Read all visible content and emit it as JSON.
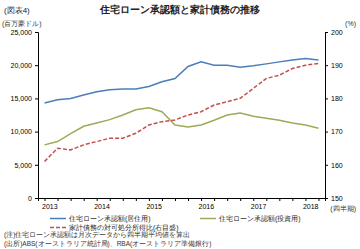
{
  "chart_data": {
    "type": "line",
    "subtitle": "(図表4)",
    "title": "住宅ローン承認額と家計債務の推移",
    "y_label": "(百万豪ドル)",
    "y2_label": "(%)",
    "x_label": "(四半期)",
    "categories": [
      "2013",
      null,
      null,
      null,
      "2014",
      null,
      null,
      null,
      "2015",
      null,
      null,
      null,
      "2016",
      null,
      null,
      null,
      "2017",
      null,
      null,
      null,
      "2018",
      null
    ],
    "series": [
      {
        "name": "住宅ローン承認額(居住用)",
        "color": "#4a7ebb",
        "line_style": "solid",
        "values": [
          14300,
          14800,
          15000,
          15500,
          16000,
          16300,
          16400,
          16400,
          16800,
          17500,
          18000,
          19800,
          20500,
          20000,
          20000,
          19700,
          19900,
          20200,
          20500,
          20800,
          21000,
          20800
        ]
      },
      {
        "name": "住宅ローン承認額(投資用)",
        "color": "#9bab57",
        "line_style": "solid",
        "values": [
          8000,
          8500,
          9700,
          10800,
          11300,
          11800,
          12500,
          13300,
          13600,
          13000,
          11000,
          10700,
          11000,
          11700,
          12500,
          12800,
          12300,
          12000,
          11700,
          11300,
          11000,
          10500
        ]
      },
      {
        "name": "家計債務の対可処分所得比(右目盛)",
        "color": "#c0504d",
        "line_style": "dashed",
        "axis": "y2",
        "values": [
          161,
          165,
          164.5,
          166,
          167,
          168,
          168,
          169.5,
          172,
          173,
          173.5,
          175,
          176,
          178,
          179,
          180,
          183,
          186,
          187,
          189,
          190,
          190.5
        ]
      }
    ],
    "ylim": [
      0,
      25000
    ],
    "yticks": [
      0,
      {
        "value": 5000,
        "label": "5,000"
      },
      {
        "value": 10000,
        "label": "10,000"
      },
      {
        "value": 15000,
        "label": "15,000"
      },
      {
        "value": 20000,
        "label": "20,000"
      },
      {
        "value": 25000,
        "label": "25,000"
      }
    ],
    "y2lim": [
      150,
      200
    ],
    "y2ticks": [
      150,
      160,
      170,
      180,
      190,
      200
    ],
    "grid": false,
    "legend": "bottom",
    "notes": [
      "(注)住宅ローン承認額は月次データから四半期平均値を算出",
      "(出所)ABS(オーストラリア統計局)、RBA(オーストラリア準備銀行)"
    ]
  }
}
